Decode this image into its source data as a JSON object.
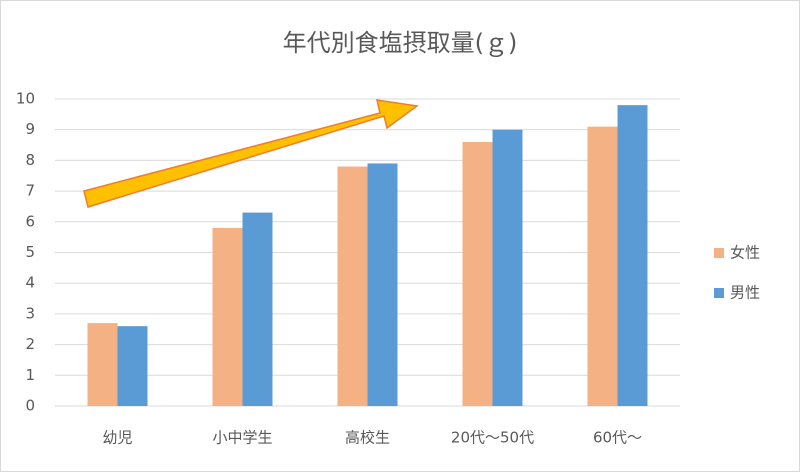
{
  "chart_data": {
    "type": "bar",
    "title": "年代別食塩摂取量(ｇ)",
    "categories": [
      "幼児",
      "小中学生",
      "高校生",
      "20代～50代",
      "60代～"
    ],
    "series": [
      {
        "name": "女性",
        "color": "#f4b183",
        "values": [
          2.7,
          5.8,
          7.8,
          8.6,
          9.1
        ]
      },
      {
        "name": "男性",
        "color": "#5b9bd5",
        "values": [
          2.6,
          6.3,
          7.9,
          9.0,
          9.8
        ]
      }
    ],
    "ylim": [
      0,
      10
    ],
    "yticks": [
      0,
      1,
      2,
      3,
      4,
      5,
      6,
      7,
      8,
      9,
      10
    ],
    "grid": true,
    "legend": "right"
  }
}
